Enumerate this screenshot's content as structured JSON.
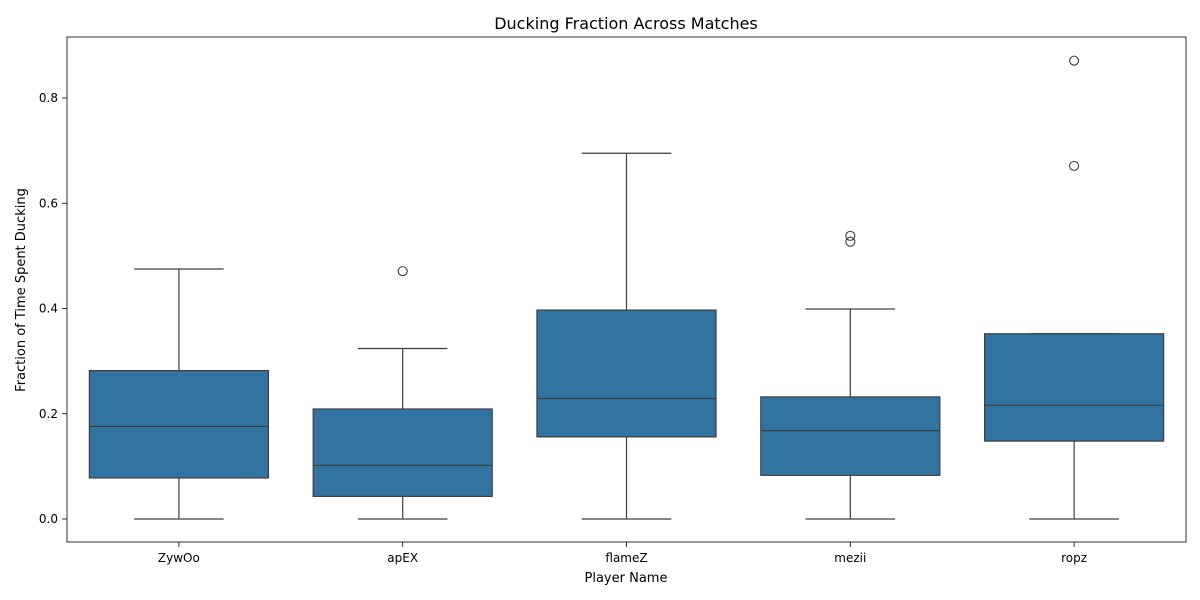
{
  "chart_data": {
    "type": "box",
    "title": "Ducking Fraction Across Matches",
    "xlabel": "Player Name",
    "ylabel": "Fraction of Time Spent Ducking",
    "ylim": [
      -0.045,
      0.915
    ],
    "yticks": [
      0.0,
      0.2,
      0.4,
      0.6,
      0.8
    ],
    "ytick_labels": [
      "0.0",
      "0.2",
      "0.4",
      "0.6",
      "0.8"
    ],
    "categories": [
      "ZywOo",
      "apEX",
      "flameZ",
      "mezii",
      "ropz"
    ],
    "boxes": [
      {
        "name": "ZywOo",
        "whisker_low": 0.0,
        "q1": 0.078,
        "median": 0.176,
        "q3": 0.282,
        "whisker_high": 0.475,
        "outliers": []
      },
      {
        "name": "apEX",
        "whisker_low": 0.0,
        "q1": 0.043,
        "median": 0.102,
        "q3": 0.209,
        "whisker_high": 0.324,
        "outliers": [
          0.471
        ]
      },
      {
        "name": "flameZ",
        "whisker_low": 0.0,
        "q1": 0.156,
        "median": 0.229,
        "q3": 0.397,
        "whisker_high": 0.695,
        "outliers": []
      },
      {
        "name": "mezii",
        "whisker_low": 0.0,
        "q1": 0.083,
        "median": 0.168,
        "q3": 0.232,
        "whisker_high": 0.399,
        "outliers": [
          0.538,
          0.527
        ]
      },
      {
        "name": "ropz",
        "whisker_low": 0.0,
        "q1": 0.148,
        "median": 0.216,
        "q3": 0.352,
        "whisker_high": 0.352,
        "outliers": [
          0.871,
          0.671
        ]
      }
    ],
    "box_color": "#3274a1",
    "line_color": "#3d3d3d",
    "grid": false
  }
}
